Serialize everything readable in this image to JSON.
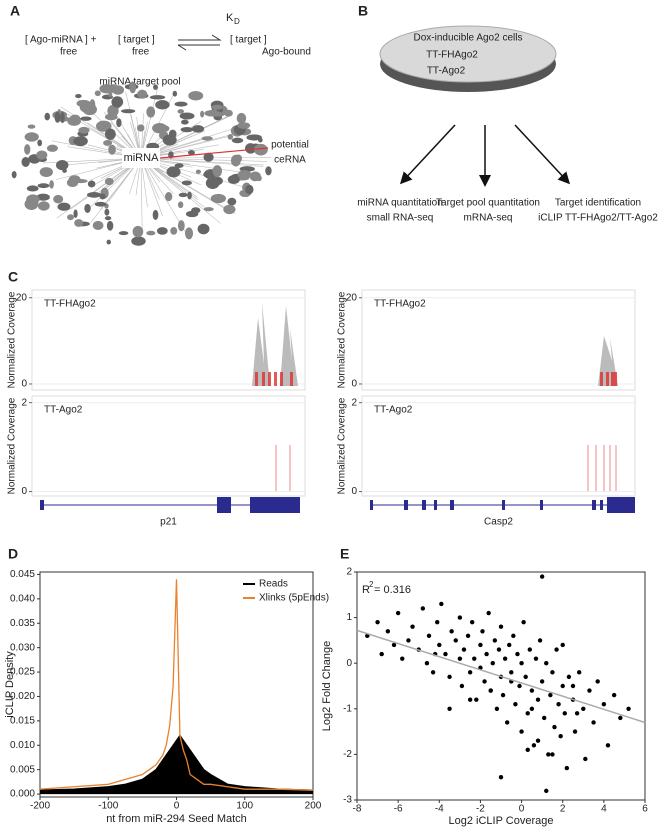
{
  "panel_labels": [
    "A",
    "B",
    "C",
    "D",
    "E"
  ],
  "panel_a": {
    "free_complex": "[ Ago-miRNA ] +",
    "free_complex_sub": "free",
    "target": "[ target ]",
    "target_sub": "free",
    "kd": "K",
    "kd_sub": "D",
    "bound": "[ target ]",
    "bound_sub": "Ago-bound",
    "pool_label": "miRNA target pool",
    "center_label": "miRNA",
    "cerna": [
      "potential",
      "ceRNA"
    ]
  },
  "panel_b": {
    "cells": [
      "Dox-inducible Ago2 cells",
      "TT-FHAgo2",
      "TT-Ago2"
    ],
    "outputs": [
      [
        "miRNA quantitation",
        "small RNA-seq"
      ],
      [
        "Target pool quantitation",
        "mRNA-seq"
      ],
      [
        "Target identification",
        "iCLIP TT-FHAgo2/TT-Ago2"
      ]
    ]
  },
  "panel_c": {
    "ylabel": "Normalized Coverage",
    "genes": [
      {
        "name": "p21",
        "tracks": [
          {
            "name": "TT-FHAgo2",
            "ylim": [
              -1.4,
              21.8
            ],
            "yticks": [
              0,
              20
            ]
          },
          {
            "name": "TT-Ago2",
            "ylim": [
              -0.1,
              2.15
            ],
            "yticks": [
              0,
              2
            ]
          }
        ]
      },
      {
        "name": "Casp2",
        "tracks": [
          {
            "name": "TT-FHAgo2",
            "ylim": [
              -1.4,
              21.8
            ],
            "yticks": [
              0,
              20
            ]
          },
          {
            "name": "TT-Ago2",
            "ylim": [
              -0.1,
              2.15
            ],
            "yticks": [
              0,
              2
            ]
          }
        ]
      }
    ]
  },
  "chart_data": [
    {
      "type": "line",
      "xlabel": "nt from miR-294 Seed Match",
      "ylabel": "iCLIP Density",
      "legend": "upper right",
      "x": [
        -200,
        -150,
        -100,
        -75,
        -50,
        -40,
        -30,
        -20,
        -15,
        -10,
        -5,
        0,
        5,
        10,
        15,
        20,
        30,
        40,
        50,
        75,
        100,
        150,
        200
      ],
      "series": [
        {
          "name": "Reads",
          "color": "#000000",
          "fill": true,
          "values": [
            0.0008,
            0.001,
            0.0015,
            0.002,
            0.003,
            0.004,
            0.005,
            0.007,
            0.008,
            0.009,
            0.01,
            0.011,
            0.012,
            0.011,
            0.01,
            0.009,
            0.007,
            0.005,
            0.004,
            0.002,
            0.0015,
            0.001,
            0.0008
          ]
        },
        {
          "name": "Xlinks (5pEnds)",
          "color": "#e8822e",
          "fill": false,
          "values": [
            0.001,
            0.0015,
            0.002,
            0.003,
            0.004,
            0.005,
            0.006,
            0.008,
            0.01,
            0.014,
            0.022,
            0.044,
            0.012,
            0.009,
            0.007,
            0.004,
            0.003,
            0.002,
            0.002,
            0.0015,
            0.001,
            0.001,
            0.0008
          ]
        }
      ],
      "xlim": [
        -200,
        200
      ],
      "xticks": [
        -200,
        -100,
        0,
        100,
        200
      ],
      "ylim": [
        -0.0006,
        0.0455
      ],
      "yticks": [
        {
          "value": 0,
          "label": "0.000"
        },
        {
          "value": 0.005,
          "label": "0.005"
        },
        {
          "value": 0.01,
          "label": "0.010"
        },
        {
          "value": 0.015,
          "label": "0.015"
        },
        {
          "value": 0.02,
          "label": "0.020"
        },
        {
          "value": 0.025,
          "label": "0.025"
        },
        {
          "value": 0.03,
          "label": "0.030"
        },
        {
          "value": 0.035,
          "label": "0.035"
        },
        {
          "value": 0.04,
          "label": "0.040"
        },
        {
          "value": 0.045,
          "label": "0.045"
        }
      ]
    },
    {
      "type": "scatter",
      "xlabel": "Log2 iCLIP Coverage",
      "ylabel": "Log2 Fold Change",
      "color": "#000000",
      "annotation": {
        "base": "R",
        "sup": "2",
        "text": "= 0.316"
      },
      "x": [
        -7.5,
        -7,
        -6.8,
        -6.5,
        -6.2,
        -6,
        -5.8,
        -5.5,
        -5.3,
        -5,
        -4.8,
        -4.6,
        -4.5,
        -4.3,
        -4.1,
        -4,
        -3.9,
        -3.7,
        -3.5,
        -3.4,
        -3.2,
        -3,
        -3,
        -2.9,
        -2.8,
        -2.6,
        -2.5,
        -2.4,
        -2.3,
        -2.2,
        -2,
        -2,
        -1.9,
        -1.8,
        -1.7,
        -1.6,
        -1.5,
        -1.4,
        -1.3,
        -1.2,
        -1.1,
        -1,
        -1,
        -0.9,
        -0.8,
        -0.7,
        -0.6,
        -0.5,
        -0.4,
        -0.3,
        -0.2,
        -0.1,
        0,
        0,
        0.1,
        0.2,
        0.3,
        0.4,
        0.5,
        0.6,
        0.7,
        0.8,
        0.9,
        1,
        1,
        1.1,
        1.2,
        1.3,
        1.4,
        1.5,
        1.6,
        1.7,
        1.8,
        1.9,
        2,
        2,
        2.1,
        2.2,
        2.3,
        2.5,
        2.6,
        2.8,
        3,
        3.1,
        3.3,
        3.5,
        3.7,
        4,
        4.2,
        4.5,
        4.8,
        5.2,
        -3.5,
        -2.5,
        -1.5,
        -0.5,
        0.5,
        1.5,
        2.5,
        1.2,
        0.8,
        -4.2,
        -1,
        0.3,
        2.7
      ],
      "values": [
        0.6,
        0.9,
        0.2,
        0.7,
        0.4,
        1.1,
        0.1,
        0.5,
        0.8,
        0.3,
        1.2,
        0,
        0.6,
        -0.2,
        0.9,
        0.4,
        1.3,
        0.2,
        -0.3,
        0.7,
        0.5,
        0.1,
        1.0,
        -0.5,
        0.3,
        0.6,
        -0.2,
        0.9,
        0.1,
        -0.8,
        0.4,
        -0.1,
        0.7,
        -0.4,
        0.2,
        1.1,
        -0.6,
        0,
        0.5,
        -1.0,
        0.3,
        -0.3,
        0.8,
        -0.7,
        0.1,
        -1.3,
        0.4,
        -0.2,
        0.6,
        -0.9,
        0.2,
        -0.5,
        0,
        -1.5,
        0.9,
        -0.3,
        -1.1,
        0.3,
        -0.6,
        -1.8,
        0.1,
        -0.8,
        0.5,
        -0.4,
        1.9,
        -1.2,
        0,
        -2.0,
        -0.7,
        -0.2,
        -1.4,
        0.3,
        -0.9,
        -1.6,
        -0.5,
        0.4,
        -1.1,
        -2.3,
        -0.3,
        -0.8,
        -1.5,
        -0.2,
        -1.0,
        -2.1,
        -0.6,
        -1.3,
        -0.4,
        -0.9,
        -1.8,
        -0.7,
        -1.2,
        -1.0,
        -1.0,
        -0.8,
        -0.6,
        -0.4,
        -1.0,
        -2.0,
        -0.5,
        -2.8,
        -1.7,
        0.2,
        -2.5,
        -1.9,
        -1.1
      ],
      "fit": {
        "x": [
          -8,
          6
        ],
        "values": [
          0.72,
          -1.3
        ],
        "color": "#aaaaaa"
      },
      "xlim": [
        -8,
        6
      ],
      "xticks": [
        -8,
        -6,
        -4,
        -2,
        0,
        2,
        4,
        6
      ],
      "ylim": [
        -3,
        2
      ],
      "yticks": [
        -3,
        -2,
        -1,
        0,
        1,
        2
      ]
    }
  ]
}
